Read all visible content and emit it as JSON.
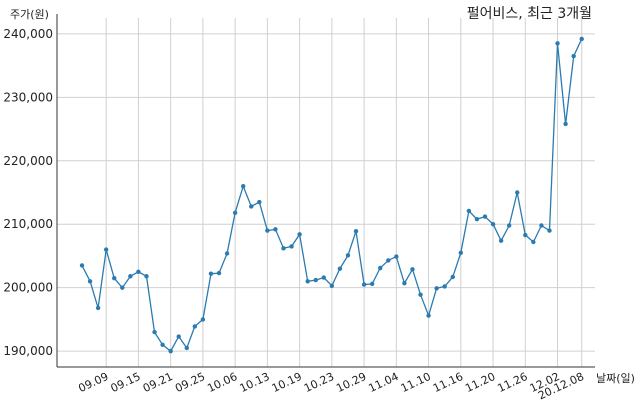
{
  "chart_data": {
    "type": "line",
    "title": "펄어비스, 최근 3개월",
    "ylabel": "주가(원)",
    "xlabel": "날짜(일)",
    "ylim": [
      187500,
      242500
    ],
    "y_ticks": [
      190000,
      200000,
      210000,
      220000,
      230000,
      240000
    ],
    "y_tick_labels": [
      "190,000",
      "200,000",
      "210,000",
      "220,000",
      "230,000",
      "240,000"
    ],
    "x_tick_index": [
      3,
      7,
      11,
      15,
      19,
      23,
      27,
      31,
      35,
      39,
      43,
      47,
      51,
      55,
      59
    ],
    "x_tick_labels": [
      "09.09",
      "09.15",
      "09.21",
      "09.25",
      "10.06",
      "10.13",
      "10.19",
      "10.23",
      "10.29",
      "11.04",
      "11.10",
      "11.16",
      "11.20",
      "11.26",
      "12.02"
    ],
    "x_last_label": "20.12.08",
    "grid": true,
    "color": "#2b7bb0",
    "values": [
      203500,
      201000,
      196800,
      206000,
      201500,
      200000,
      201800,
      202500,
      201800,
      193000,
      191000,
      190000,
      192300,
      190500,
      193900,
      195000,
      202200,
      202300,
      205400,
      211800,
      216000,
      212800,
      213500,
      209000,
      209200,
      206200,
      206500,
      208400,
      201000,
      201200,
      201600,
      200300,
      203000,
      205100,
      208900,
      200500,
      200600,
      203100,
      204300,
      204900,
      200700,
      202900,
      198900,
      195600,
      199900,
      200200,
      201700,
      205500,
      212100,
      210800,
      211200,
      210000,
      207400,
      209800,
      215000,
      208300,
      207200,
      209800,
      209000,
      238500,
      225800,
      236500,
      239200
    ]
  }
}
